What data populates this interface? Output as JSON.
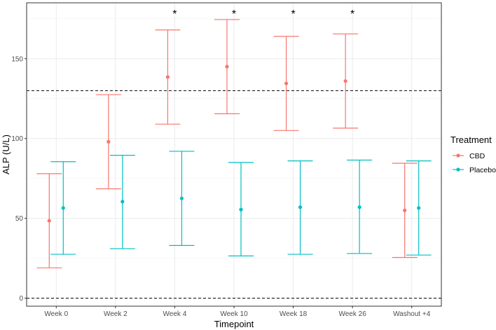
{
  "chart_data": {
    "type": "errorbar",
    "xlabel": "Timepoint",
    "ylabel": "ALP (U/L)",
    "ylim": [
      -5,
      185
    ],
    "yticks": [
      0,
      50,
      100,
      150
    ],
    "grid": true,
    "legend_position": "right",
    "legend_title": "Treatment",
    "categories": [
      "Week 0",
      "Week 2",
      "Week 4",
      "Week 10",
      "Week 18",
      "Week 26",
      "Washout +4"
    ],
    "reference_lines": [
      0,
      130
    ],
    "significance_marker": "*",
    "significant_categories": [
      "Week 4",
      "Week 10",
      "Week 18",
      "Week 26"
    ],
    "series": [
      {
        "name": "CBD",
        "color": "#F8766D",
        "mean": [
          48.5,
          98,
          138.5,
          145,
          134.5,
          136,
          55
        ],
        "lower": [
          19,
          68.5,
          109,
          115.5,
          105,
          106.5,
          25.5
        ],
        "upper": [
          78,
          127.5,
          168,
          174.5,
          164,
          165.5,
          84.5
        ]
      },
      {
        "name": "Placebo",
        "color": "#00BFC4",
        "mean": [
          56.5,
          60.5,
          62.5,
          55.5,
          57,
          57,
          56.5
        ],
        "lower": [
          27.5,
          31,
          33,
          26.5,
          27.5,
          28,
          27
        ],
        "upper": [
          85.5,
          89.5,
          92,
          85,
          86,
          86.5,
          86
        ]
      }
    ]
  }
}
